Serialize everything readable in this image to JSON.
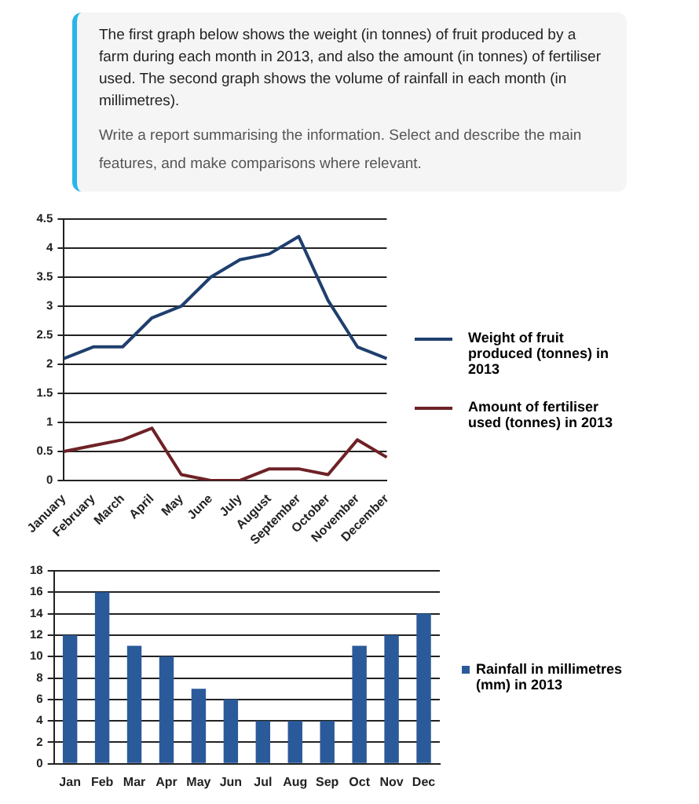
{
  "chart_data": [
    {
      "type": "other",
      "annotations": [
        "The first graph below shows the weight (in tonnes) of fruit produced by a farm during each month in 2013, and also the amount (in tonnes) of fertiliser used. The second graph shows the volume of rainfall in each month (in millimetres).",
        "Write a report summarising the information. Select and describe the main features, and make comparisons where relevant."
      ]
    },
    {
      "type": "line",
      "categories": [
        "January",
        "February",
        "March",
        "April",
        "May",
        "June",
        "July",
        "August",
        "September",
        "October",
        "November",
        "December"
      ],
      "series": [
        {
          "name": "Weight of fruit produced (tonnes) in 2013",
          "color": "#1f3f6e",
          "values": [
            2.1,
            2.3,
            2.3,
            2.8,
            3.0,
            3.5,
            3.8,
            3.9,
            4.2,
            3.1,
            2.3,
            2.1
          ]
        },
        {
          "name": "Amount of fertiliser used (tonnes) in 2013",
          "color": "#6e2226",
          "values": [
            0.5,
            0.6,
            0.7,
            0.9,
            0.1,
            0,
            0,
            0.2,
            0.2,
            0.1,
            0.7,
            0.4
          ]
        }
      ],
      "ylim": [
        0,
        4.5
      ],
      "yticks": [
        0,
        0.5,
        1,
        1.5,
        2,
        2.5,
        3,
        3.5,
        4,
        4.5
      ],
      "grid": "y",
      "legend": "right",
      "marker": "none"
    },
    {
      "type": "bar",
      "categories": [
        "Jan",
        "Feb",
        "Mar",
        "Apr",
        "May",
        "Jun",
        "Jul",
        "Aug",
        "Sep",
        "Oct",
        "Nov",
        "Dec"
      ],
      "series": [
        {
          "name": "Rainfall in millimetres (mm) in 2013",
          "color": "#2a5a9a",
          "values": [
            12,
            16,
            11,
            10,
            7,
            6,
            4,
            4,
            4,
            11,
            12,
            14
          ]
        }
      ],
      "ylim": [
        0,
        18
      ],
      "yticks": [
        0,
        2,
        4,
        6,
        8,
        10,
        12,
        14,
        16,
        18
      ],
      "grid": "y",
      "legend": "right"
    }
  ]
}
